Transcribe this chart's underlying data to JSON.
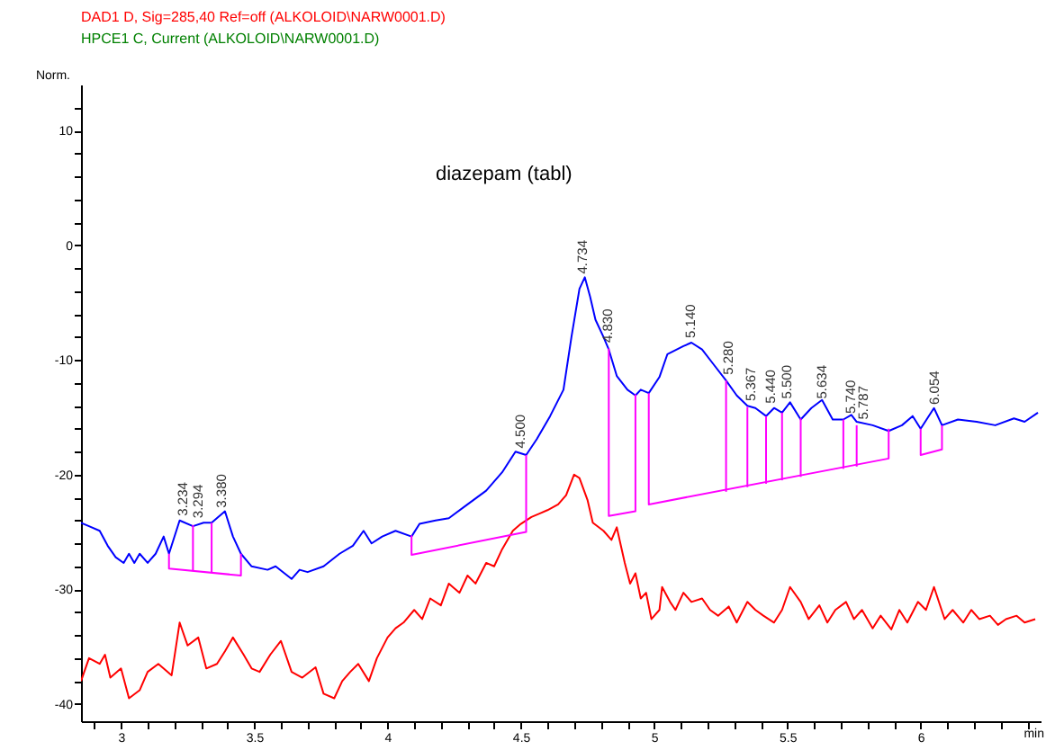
{
  "chart_data": {
    "type": "line",
    "title": "diazepam (tabl)",
    "ylabel": "Norm.",
    "xlabel": "min",
    "xlim": [
      2.85,
      6.45
    ],
    "ylim": [
      -41.5,
      14
    ],
    "xticks": [
      {
        "value": 2.9,
        "label": null
      },
      3,
      {
        "value": 3.1,
        "label": null
      },
      {
        "value": 3.2,
        "label": null
      },
      {
        "value": 3.3,
        "label": null
      },
      {
        "value": 3.4,
        "label": null
      },
      3.5,
      {
        "value": 3.6,
        "label": null
      },
      {
        "value": 3.7,
        "label": null
      },
      {
        "value": 3.8,
        "label": null
      },
      {
        "value": 3.9,
        "label": null
      },
      4,
      {
        "value": 4.1,
        "label": null
      },
      {
        "value": 4.2,
        "label": null
      },
      {
        "value": 4.3,
        "label": null
      },
      {
        "value": 4.4,
        "label": null
      },
      4.5,
      {
        "value": 4.6,
        "label": null
      },
      {
        "value": 4.7,
        "label": null
      },
      {
        "value": 4.8,
        "label": null
      },
      {
        "value": 4.9,
        "label": null
      },
      5,
      {
        "value": 5.1,
        "label": null
      },
      {
        "value": 5.2,
        "label": null
      },
      {
        "value": 5.3,
        "label": null
      },
      {
        "value": 5.4,
        "label": null
      },
      5.5,
      {
        "value": 5.6,
        "label": null
      },
      {
        "value": 5.7,
        "label": null
      },
      {
        "value": 5.8,
        "label": null
      },
      {
        "value": 5.9,
        "label": null
      },
      6,
      {
        "value": 6.1,
        "label": null
      },
      {
        "value": 6.2,
        "label": null
      },
      {
        "value": 6.3,
        "label": null
      },
      {
        "value": 6.4,
        "label": null
      }
    ],
    "yticks": [
      -40,
      {
        "value": -38,
        "label": null
      },
      {
        "value": -36,
        "label": null
      },
      {
        "value": -34,
        "label": null
      },
      {
        "value": -32,
        "label": null
      },
      -30,
      {
        "value": -28,
        "label": null
      },
      {
        "value": -26,
        "label": null
      },
      {
        "value": -24,
        "label": null
      },
      {
        "value": -22,
        "label": null
      },
      -20,
      {
        "value": -18,
        "label": null
      },
      {
        "value": -16,
        "label": null
      },
      {
        "value": -14,
        "label": null
      },
      {
        "value": -12,
        "label": null
      },
      -10,
      {
        "value": -8,
        "label": null
      },
      {
        "value": -6,
        "label": null
      },
      {
        "value": -4,
        "label": null
      },
      {
        "value": -2,
        "label": null
      },
      0,
      {
        "value": 2,
        "label": null
      },
      {
        "value": 4,
        "label": null
      },
      {
        "value": 6,
        "label": null
      },
      {
        "value": 8,
        "label": null
      },
      10,
      {
        "value": 12,
        "label": null
      }
    ],
    "grid": false,
    "legend": "top left",
    "series": [
      {
        "name": "DAD1 D, Sig=285,40 Ref=off (ALKOLOID\\NARW0001.D)",
        "color": "#ff0000",
        "x": [
          2.85,
          2.88,
          2.92,
          2.94,
          2.96,
          3.0,
          3.03,
          3.07,
          3.1,
          3.14,
          3.19,
          3.22,
          3.25,
          3.29,
          3.32,
          3.36,
          3.39,
          3.42,
          3.46,
          3.49,
          3.52,
          3.56,
          3.6,
          3.64,
          3.68,
          3.73,
          3.76,
          3.8,
          3.83,
          3.86,
          3.89,
          3.93,
          3.96,
          4.0,
          4.03,
          4.06,
          4.1,
          4.13,
          4.16,
          4.2,
          4.23,
          4.27,
          4.3,
          4.33,
          4.37,
          4.4,
          4.43,
          4.47,
          4.5,
          4.54,
          4.57,
          4.6,
          4.64,
          4.67,
          4.7,
          4.72,
          4.75,
          4.77,
          4.81,
          4.84,
          4.86,
          4.89,
          4.91,
          4.93,
          4.95,
          4.97,
          4.99,
          5.02,
          5.03,
          5.06,
          5.08,
          5.11,
          5.14,
          5.18,
          5.21,
          5.24,
          5.28,
          5.31,
          5.35,
          5.38,
          5.41,
          5.45,
          5.48,
          5.51,
          5.55,
          5.58,
          5.62,
          5.65,
          5.68,
          5.72,
          5.75,
          5.78,
          5.82,
          5.85,
          5.89,
          5.92,
          5.95,
          5.99,
          6.02,
          6.05,
          6.09,
          6.12,
          6.16,
          6.19,
          6.22,
          6.26,
          6.29,
          6.32,
          6.36,
          6.39,
          6.43
        ],
        "values": [
          -38.0,
          -36.0,
          -36.5,
          -35.7,
          -37.7,
          -36.9,
          -39.5,
          -38.8,
          -37.2,
          -36.5,
          -37.5,
          -32.9,
          -34.9,
          -34.2,
          -36.9,
          -36.5,
          -35.4,
          -34.2,
          -35.7,
          -36.9,
          -37.2,
          -35.7,
          -34.5,
          -37.2,
          -37.7,
          -36.8,
          -39.1,
          -39.5,
          -38.0,
          -37.2,
          -36.5,
          -38.0,
          -36.0,
          -34.2,
          -33.4,
          -32.9,
          -31.8,
          -32.6,
          -30.8,
          -31.4,
          -29.5,
          -30.3,
          -28.8,
          -29.5,
          -27.7,
          -28.0,
          -26.5,
          -24.9,
          -24.3,
          -23.7,
          -23.4,
          -23.1,
          -22.6,
          -21.8,
          -20.0,
          -20.3,
          -22.2,
          -24.2,
          -24.9,
          -25.7,
          -24.6,
          -27.7,
          -29.5,
          -28.6,
          -30.8,
          -30.3,
          -32.6,
          -31.8,
          -29.8,
          -31.1,
          -31.8,
          -30.3,
          -31.1,
          -30.8,
          -31.8,
          -32.3,
          -31.5,
          -32.9,
          -31.1,
          -31.8,
          -32.3,
          -32.9,
          -31.8,
          -29.8,
          -31.1,
          -32.6,
          -31.4,
          -32.9,
          -31.8,
          -31.1,
          -32.6,
          -31.8,
          -33.4,
          -32.3,
          -33.5,
          -31.8,
          -32.9,
          -31.1,
          -31.8,
          -29.8,
          -32.6,
          -31.8,
          -32.9,
          -31.8,
          -32.6,
          -32.3,
          -33.1,
          -32.6,
          -32.3,
          -32.9,
          -32.6
        ]
      },
      {
        "color": "#0000ff",
        "x": [
          2.85,
          2.88,
          2.92,
          2.95,
          2.98,
          3.01,
          3.03,
          3.05,
          3.07,
          3.1,
          3.13,
          3.16,
          3.18,
          3.22,
          3.27,
          3.31,
          3.34,
          3.39,
          3.42,
          3.45,
          3.49,
          3.55,
          3.58,
          3.64,
          3.67,
          3.7,
          3.76,
          3.82,
          3.87,
          3.91,
          3.94,
          3.98,
          4.03,
          4.09,
          4.12,
          4.18,
          4.23,
          4.3,
          4.37,
          4.43,
          4.48,
          4.52,
          4.56,
          4.61,
          4.66,
          4.69,
          4.72,
          4.74,
          4.76,
          4.78,
          4.81,
          4.83,
          4.86,
          4.9,
          4.93,
          4.95,
          4.98,
          5.02,
          5.05,
          5.11,
          5.14,
          5.18,
          5.22,
          5.27,
          5.31,
          5.35,
          5.38,
          5.42,
          5.45,
          5.48,
          5.51,
          5.55,
          5.59,
          5.63,
          5.67,
          5.71,
          5.74,
          5.76,
          5.82,
          5.88,
          5.93,
          5.97,
          6.0,
          6.05,
          6.08,
          6.14,
          6.21,
          6.28,
          6.35,
          6.39,
          6.44
        ],
        "values": [
          -24.2,
          -24.5,
          -24.9,
          -26.2,
          -27.2,
          -27.7,
          -26.9,
          -27.7,
          -26.9,
          -27.7,
          -26.9,
          -25.4,
          -26.9,
          -24.0,
          -24.5,
          -24.2,
          -24.2,
          -23.2,
          -25.4,
          -26.9,
          -28.0,
          -28.3,
          -28.0,
          -29.1,
          -28.3,
          -28.5,
          -28.0,
          -26.9,
          -26.2,
          -24.9,
          -26.0,
          -25.4,
          -24.9,
          -25.4,
          -24.3,
          -24.0,
          -23.8,
          -22.6,
          -21.4,
          -19.8,
          -18.0,
          -18.3,
          -16.9,
          -14.9,
          -12.6,
          -8.0,
          -3.8,
          -2.8,
          -4.5,
          -6.5,
          -8.0,
          -9.1,
          -11.4,
          -12.6,
          -13.1,
          -12.6,
          -12.9,
          -11.5,
          -9.5,
          -8.8,
          -8.5,
          -9.1,
          -10.3,
          -11.8,
          -13.1,
          -14.0,
          -14.2,
          -14.9,
          -14.2,
          -14.6,
          -13.7,
          -15.2,
          -14.2,
          -13.5,
          -15.2,
          -15.2,
          -14.8,
          -15.4,
          -15.7,
          -16.2,
          -15.7,
          -14.9,
          -16.0,
          -14.2,
          -15.7,
          -15.2,
          -15.4,
          -15.7,
          -15.1,
          -15.4,
          -14.6
        ]
      },
      {
        "color": "#ff00ff",
        "x": [
          3.18,
          3.18,
          3.45,
          3.45,
          null,
          3.27,
          3.27,
          null,
          3.34,
          3.34,
          null,
          4.09,
          4.09,
          4.52,
          4.52,
          null,
          4.83,
          4.83,
          4.93,
          4.93,
          null,
          4.98,
          4.98,
          5.88,
          5.88,
          null,
          5.27,
          5.27,
          null,
          5.35,
          5.35,
          null,
          5.42,
          5.42,
          null,
          5.48,
          5.48,
          null,
          5.55,
          5.55,
          null,
          5.71,
          5.71,
          null,
          5.76,
          5.76,
          null,
          6.0,
          6.0,
          6.08,
          6.08
        ],
        "values": [
          -26.9,
          -28.2,
          -28.8,
          -26.9,
          null,
          -28.4,
          -24.4,
          null,
          -28.5,
          -24.2,
          null,
          -25.3,
          -27.0,
          -25.0,
          -18.3,
          null,
          -9.0,
          -23.6,
          -23.2,
          -13.0,
          null,
          -12.9,
          -22.6,
          -18.6,
          -16.0,
          null,
          -21.5,
          -11.8,
          null,
          -21.1,
          -14.1,
          null,
          -20.8,
          -14.9,
          null,
          -20.5,
          -14.6,
          null,
          -20.2,
          -15.1,
          null,
          -19.5,
          -15.2,
          null,
          -19.3,
          -15.7,
          null,
          -16.0,
          -18.3,
          -17.8,
          -15.7
        ]
      }
    ],
    "annotations": [
      "HPCE1 C, Current (ALKOLOID\\NARW0001.D)",
      {
        "text": "3.234",
        "x": 3.234,
        "y": -23.6
      },
      {
        "text": "3.294",
        "x": 3.294,
        "y": -23.8
      },
      {
        "text": "3.380",
        "x": 3.38,
        "y": -22.9
      },
      {
        "text": "4.500",
        "x": 4.5,
        "y": -17.7
      },
      {
        "text": "4.734",
        "x": 4.734,
        "y": -2.5
      },
      {
        "text": "4.830",
        "x": 4.83,
        "y": -8.5
      },
      {
        "text": "5.140",
        "x": 5.14,
        "y": -8.1
      },
      {
        "text": "5.280",
        "x": 5.28,
        "y": -11.3
      },
      {
        "text": "5.367",
        "x": 5.367,
        "y": -13.6
      },
      {
        "text": "5.440",
        "x": 5.44,
        "y": -13.8
      },
      {
        "text": "5.500",
        "x": 5.5,
        "y": -13.4
      },
      {
        "text": "5.634",
        "x": 5.634,
        "y": -13.4
      },
      {
        "text": "5.740",
        "x": 5.74,
        "y": -14.7
      },
      {
        "text": "5.787",
        "x": 5.787,
        "y": -15.2
      },
      {
        "text": "6.054",
        "x": 6.054,
        "y": -13.9
      }
    ]
  }
}
